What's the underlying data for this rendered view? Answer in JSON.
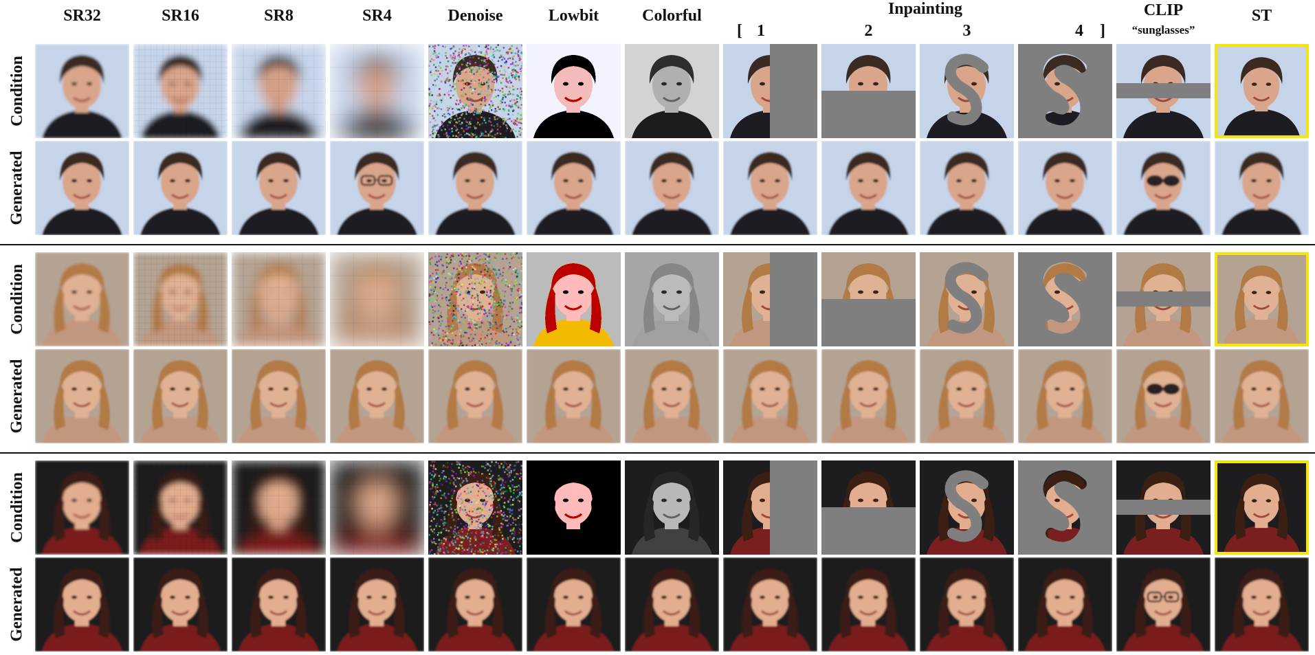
{
  "header": {
    "columns": [
      "SR32",
      "SR16",
      "SR8",
      "SR4",
      "Denoise",
      "Lowbit",
      "Colorful",
      "1",
      "2",
      "3",
      "4",
      "CLIP",
      "ST"
    ],
    "inpainting_label": "Inpainting",
    "bracket_open": "[",
    "bracket_close": "]",
    "clip_subtitle": "“sunglasses”"
  },
  "row_labels": {
    "condition": "Condition",
    "generated": "Generated"
  },
  "colors": {
    "highlight_border": "#f5e60a",
    "mask_gray": "#7f7f7f",
    "separator": "#111111"
  },
  "groups": [
    {
      "subject": "man-dark-hair",
      "skin": "#d9a58b",
      "hair": "#3a2a22",
      "bg": "#c6d4ea",
      "cloth": "#1c1c22"
    },
    {
      "subject": "woman-blonde-hair",
      "skin": "#e1b193",
      "hair": "#b27a45",
      "bg": "#b4a393",
      "cloth": "#c2977f"
    },
    {
      "subject": "woman-brown-hair",
      "skin": "#e3ad8f",
      "hair": "#3a1f12",
      "bg": "#1d1d1f",
      "cloth": "#7a1f1f"
    }
  ]
}
